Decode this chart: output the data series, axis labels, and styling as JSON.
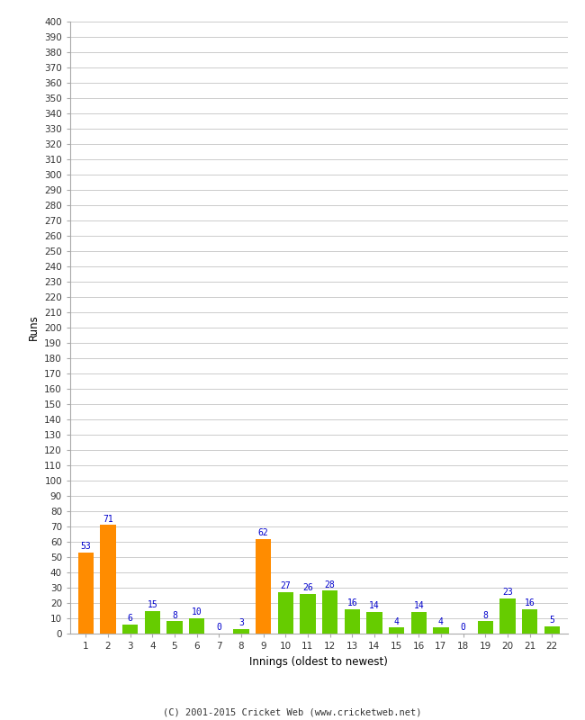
{
  "innings": [
    1,
    2,
    3,
    4,
    5,
    6,
    7,
    8,
    9,
    10,
    11,
    12,
    13,
    14,
    15,
    16,
    17,
    18,
    19,
    20,
    21,
    22
  ],
  "runs": [
    53,
    71,
    6,
    15,
    8,
    10,
    0,
    3,
    62,
    27,
    26,
    28,
    16,
    14,
    4,
    14,
    4,
    0,
    8,
    23,
    16,
    5
  ],
  "colors": [
    "#ff8c00",
    "#ff8c00",
    "#66cc00",
    "#66cc00",
    "#66cc00",
    "#66cc00",
    "#66cc00",
    "#66cc00",
    "#ff8c00",
    "#66cc00",
    "#66cc00",
    "#66cc00",
    "#66cc00",
    "#66cc00",
    "#66cc00",
    "#66cc00",
    "#66cc00",
    "#66cc00",
    "#66cc00",
    "#66cc00",
    "#66cc00",
    "#66cc00"
  ],
  "xlabel": "Innings (oldest to newest)",
  "ylabel": "Runs",
  "yticks": [
    0,
    10,
    20,
    30,
    40,
    50,
    60,
    70,
    80,
    90,
    100,
    110,
    120,
    130,
    140,
    150,
    160,
    170,
    180,
    190,
    200,
    210,
    220,
    230,
    240,
    250,
    260,
    270,
    280,
    290,
    300,
    310,
    320,
    330,
    340,
    350,
    360,
    370,
    380,
    390,
    400
  ],
  "ylim": [
    0,
    400
  ],
  "footer": "(C) 2001-2015 Cricket Web (www.cricketweb.net)",
  "background_color": "#ffffff",
  "grid_color": "#cccccc",
  "label_color": "#0000cc",
  "bar_width": 0.7,
  "figsize": [
    6.5,
    8.0
  ],
  "dpi": 100
}
